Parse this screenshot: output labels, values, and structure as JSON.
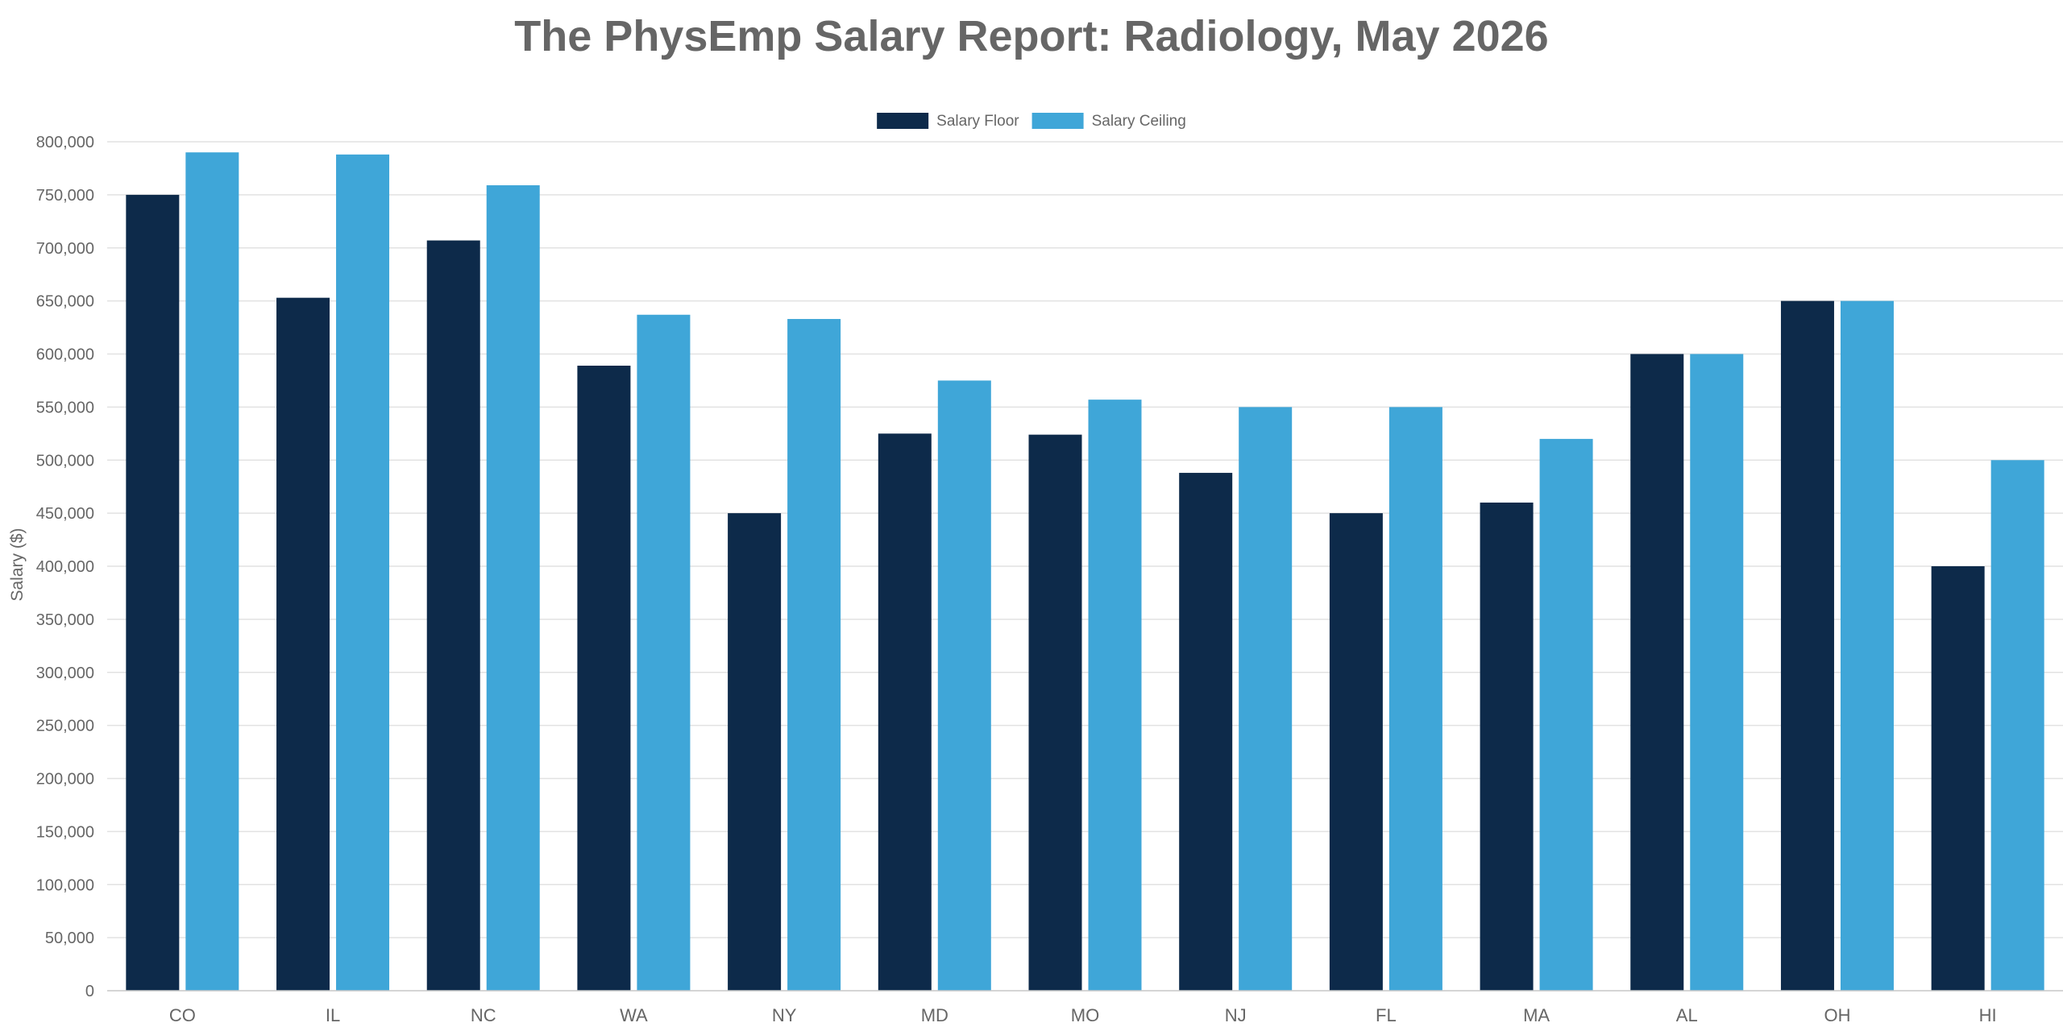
{
  "chart_data": {
    "type": "bar",
    "title": "The PhysEmp Salary Report: Radiology, May 2026",
    "xlabel": "",
    "ylabel": "Salary ($)",
    "ylim": [
      0,
      800000
    ],
    "yticks": [
      0,
      50000,
      100000,
      150000,
      200000,
      250000,
      300000,
      350000,
      400000,
      450000,
      500000,
      550000,
      600000,
      650000,
      700000,
      750000,
      800000
    ],
    "ytick_labels": [
      "0",
      "50,000",
      "100,000",
      "150,000",
      "200,000",
      "250,000",
      "300,000",
      "350,000",
      "400,000",
      "450,000",
      "500,000",
      "550,000",
      "600,000",
      "650,000",
      "700,000",
      "750,000",
      "800,000"
    ],
    "grid": true,
    "legend_position": "top-center",
    "categories": [
      "CO",
      "IL",
      "NC",
      "WA",
      "NY",
      "MD",
      "MO",
      "NJ",
      "FL",
      "MA",
      "AL",
      "OH",
      "HI"
    ],
    "series": [
      {
        "name": "Salary Floor",
        "color": "#0d2a4a",
        "values": [
          750000,
          653000,
          707000,
          589000,
          450000,
          525000,
          524000,
          488000,
          450000,
          460000,
          600000,
          650000,
          400000
        ]
      },
      {
        "name": "Salary Ceiling",
        "color": "#3fa6d8",
        "values": [
          790000,
          788000,
          759000,
          637000,
          633000,
          575000,
          557000,
          550000,
          550000,
          520000,
          600000,
          650000,
          500000
        ]
      }
    ]
  }
}
